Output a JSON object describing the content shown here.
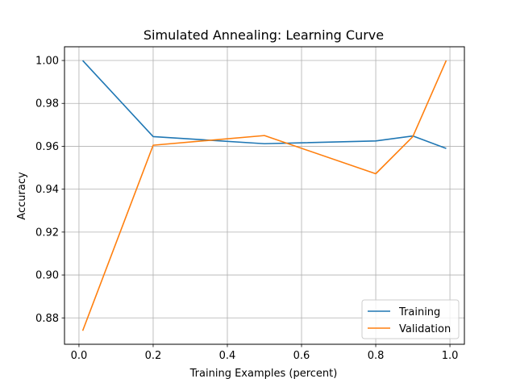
{
  "chart_data": {
    "type": "line",
    "title": "Simulated Annealing: Learning Curve",
    "xlabel": "Training Examples (percent)",
    "ylabel": "Accuracy",
    "xlim": [
      -0.039,
      1.039
    ],
    "ylim": [
      0.8677,
      1.0064
    ],
    "xticks": [
      0.0,
      0.2,
      0.4,
      0.6,
      0.8,
      1.0
    ],
    "xtick_labels": [
      "0.0",
      "0.2",
      "0.4",
      "0.6",
      "0.8",
      "1.0"
    ],
    "yticks": [
      0.88,
      0.9,
      0.92,
      0.94,
      0.96,
      0.98,
      1.0
    ],
    "ytick_labels": [
      "0.88",
      "0.90",
      "0.92",
      "0.94",
      "0.96",
      "0.98",
      "1.00"
    ],
    "grid": true,
    "legend_position": "lower-right",
    "x": [
      0.01,
      0.2,
      0.5,
      0.8,
      0.9,
      0.99
    ],
    "series": [
      {
        "name": "Training",
        "color": "#1f77b4",
        "values": [
          1.0,
          0.9645,
          0.9612,
          0.9625,
          0.9648,
          0.959
        ]
      },
      {
        "name": "Validation",
        "color": "#ff7f0e",
        "values": [
          0.874,
          0.9605,
          0.965,
          0.9472,
          0.9645,
          1.0
        ]
      }
    ]
  }
}
